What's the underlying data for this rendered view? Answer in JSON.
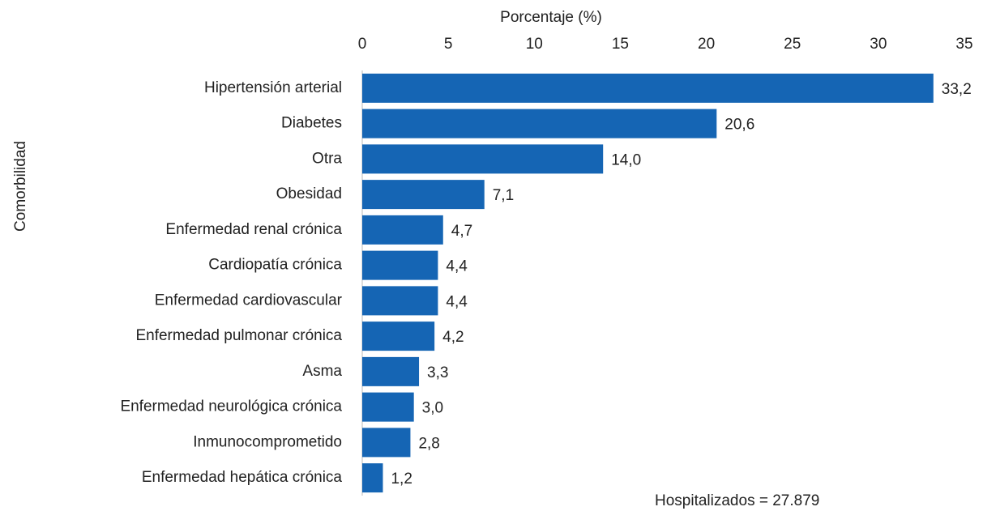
{
  "chart_data": {
    "type": "barh",
    "x_label": "Porcentaje (%)",
    "y_label": "Comorbilidad",
    "categories": [
      "Hipertensión arterial",
      "Diabetes",
      "Otra",
      "Obesidad",
      "Enfermedad renal crónica",
      "Cardiopatía crónica",
      "Enfermedad cardiovascular",
      "Enfermedad pulmonar crónica",
      "Asma",
      "Enfermedad neurológica crónica",
      "Inmunocomprometido",
      "Enfermedad hepática crónica"
    ],
    "values": [
      33.2,
      20.6,
      14.0,
      7.1,
      4.7,
      4.4,
      4.4,
      4.2,
      3.3,
      3.0,
      2.8,
      1.2
    ],
    "value_labels": [
      "33,2",
      "20,6",
      "14,0",
      "7,1",
      "4,7",
      "4,4",
      "4,4",
      "4,2",
      "3,3",
      "3,0",
      "2,8",
      "1,2"
    ],
    "color": "#1565b4",
    "xlim": [
      0,
      35
    ],
    "xticks": [
      0,
      5,
      10,
      15,
      20,
      25,
      30,
      35
    ],
    "annotation": "Hospitalizados =  27.879"
  }
}
